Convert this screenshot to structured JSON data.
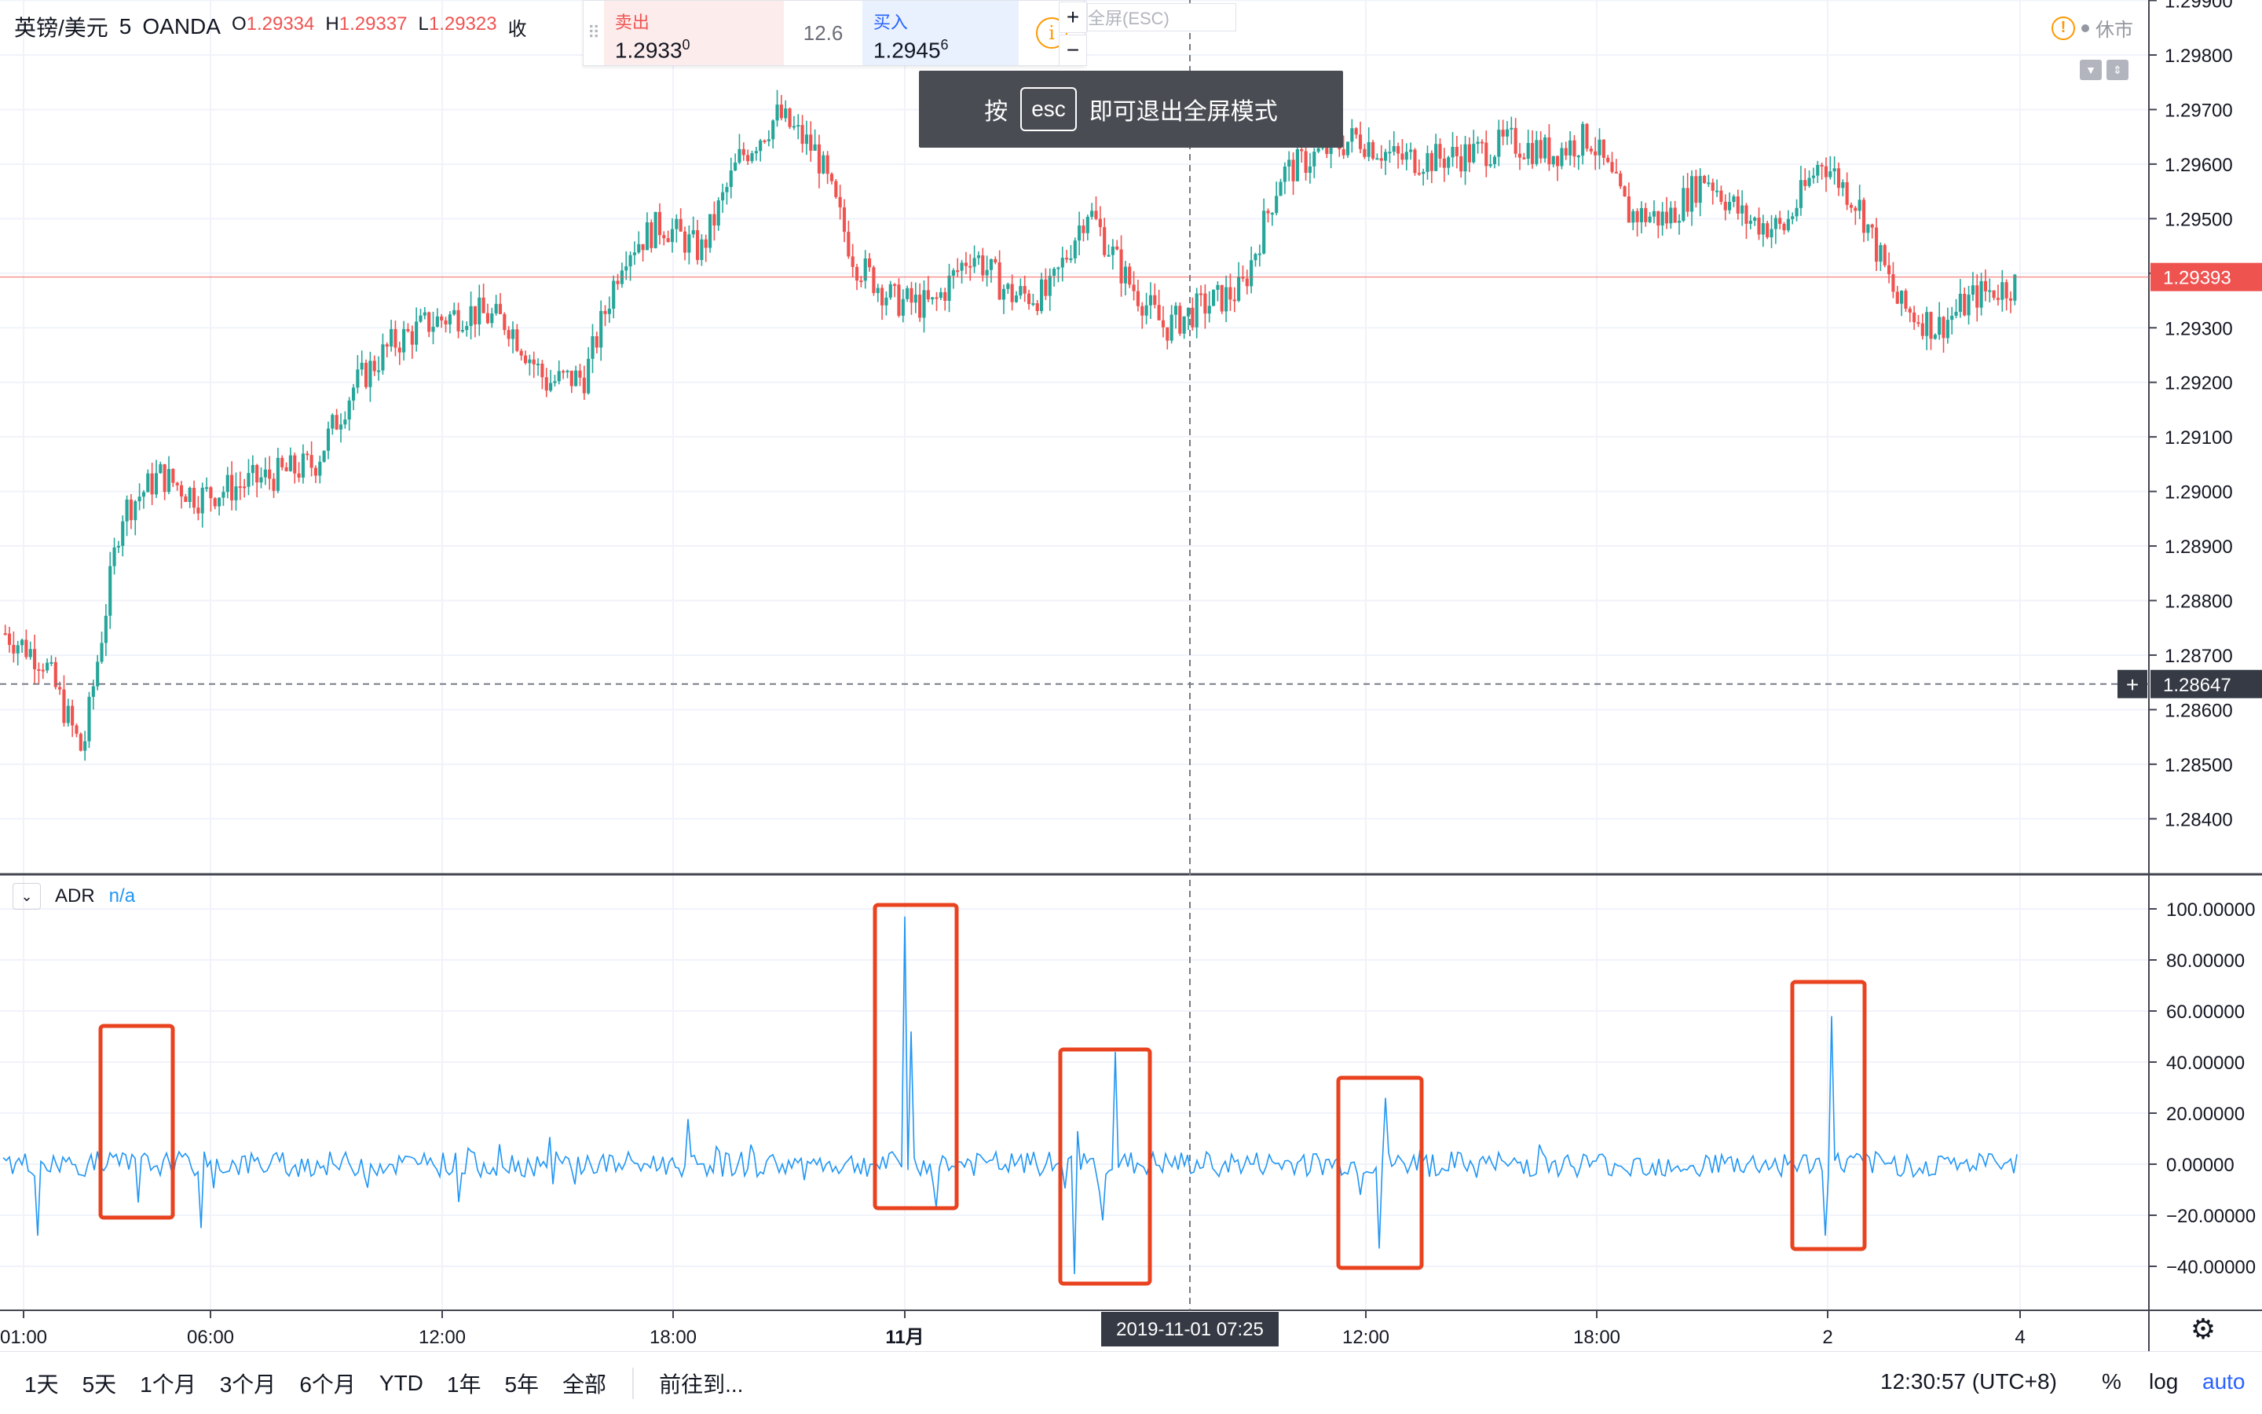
{
  "header": {
    "symbol": "英镑/美元",
    "interval": "5",
    "exchange": "OANDA",
    "ohlc": [
      {
        "key": "O",
        "value": "1.29334"
      },
      {
        "key": "H",
        "value": "1.29337"
      },
      {
        "key": "L",
        "value": "1.29323"
      },
      {
        "key": "收",
        "value": ""
      }
    ]
  },
  "trade": {
    "sell_label": "卖出",
    "sell_price": "1.2933",
    "sell_sup": "0",
    "spread": "12.6",
    "buy_label": "买入",
    "buy_price": "1.2945",
    "buy_sup": "6",
    "info_icon": "i",
    "plus": "+",
    "minus": "−",
    "fullscreen_hint": "全屏(ESC)"
  },
  "esc_toast": {
    "prefix": "按",
    "key": "esc",
    "suffix": "即可退出全屏模式"
  },
  "market_status": {
    "warn": "!",
    "label": "休市"
  },
  "price_pane": {
    "ticks": [
      "1.29900",
      "1.29800",
      "1.29700",
      "1.29600",
      "1.29500",
      "1.29400",
      "1.29300",
      "1.29200",
      "1.29100",
      "1.29000",
      "1.28900",
      "1.28800",
      "1.28700",
      "1.28600",
      "1.28500",
      "1.28400"
    ],
    "last_price": "1.29393",
    "crosshair_price": "1.28647"
  },
  "indicator": {
    "name": "ADR",
    "value": "n/a",
    "ticks": [
      "100.00000",
      "80.00000",
      "60.00000",
      "40.00000",
      "20.00000",
      "0.00000",
      "−20.00000",
      "−40.00000"
    ]
  },
  "time_axis": {
    "labels": [
      "01:00",
      "06:00",
      "12:00",
      "18:00",
      "11月",
      "12:00",
      "18:00",
      "2",
      "4"
    ],
    "crosshair_label": "2019-11-01   07:25"
  },
  "bottom_bar": {
    "ranges": [
      "1天",
      "5天",
      "1个月",
      "3个月",
      "6个月",
      "YTD",
      "1年",
      "5年",
      "全部"
    ],
    "goto": "前往到...",
    "clock": "12:30:57 (UTC+8)",
    "percent": "%",
    "log": "log",
    "auto": "auto"
  },
  "colors": {
    "up": "#26a69a",
    "down": "#ef5350",
    "indicator": "#2196f3",
    "highlight": "#e8421f",
    "accent": "#2962ff"
  },
  "chart_data": [
    {
      "type": "candlestick",
      "title": "",
      "y_axis_range": [
        1.2835,
        1.2995
      ],
      "x_axis_ticks": [
        "01:00",
        "06:00",
        "12:00",
        "18:00",
        "11月",
        "12:00",
        "18:00",
        "2",
        "4"
      ],
      "series": [
        {
          "name": "",
          "close_trend": [
            [
              "01:00",
              1.2874
            ],
            [
              "02:00",
              1.2869
            ],
            [
              "03:00",
              1.2852
            ],
            [
              "03:30",
              1.2896
            ],
            [
              "04:00",
              1.2903
            ],
            [
              "05:00",
              1.2899
            ],
            [
              "06:00",
              1.2901
            ],
            [
              "07:00",
              1.2903
            ],
            [
              "08:00",
              1.2905
            ],
            [
              "09:00",
              1.2919
            ],
            [
              "10:00",
              1.2927
            ],
            [
              "11:00",
              1.2931
            ],
            [
              "12:00",
              1.2933
            ],
            [
              "13:00",
              1.2931
            ],
            [
              "14:00",
              1.292
            ],
            [
              "15:00",
              1.2921
            ],
            [
              "16:00",
              1.2944
            ],
            [
              "17:00",
              1.2949
            ],
            [
              "18:00",
              1.2944
            ],
            [
              "19:00",
              1.2961
            ],
            [
              "20:00",
              1.2969
            ],
            [
              "21:00",
              1.2962
            ],
            [
              "22:00",
              1.2942
            ],
            [
              "23:00",
              1.2935
            ],
            [
              "11月",
              1.2934
            ],
            [
              "01:00",
              1.2944
            ],
            [
              "02:00",
              1.2936
            ],
            [
              "03:00",
              1.2936
            ],
            [
              "04:00",
              1.2952
            ],
            [
              "05:00",
              1.2939
            ],
            [
              "06:00",
              1.293
            ],
            [
              "07:00",
              1.2934
            ],
            [
              "08:00",
              1.2937
            ],
            [
              "09:00",
              1.2958
            ],
            [
              "10:00",
              1.2962
            ],
            [
              "11:00",
              1.2965
            ],
            [
              "12:00",
              1.2961
            ],
            [
              "13:00",
              1.2961
            ],
            [
              "14:00",
              1.2962
            ],
            [
              "15:00",
              1.2964
            ],
            [
              "16:00",
              1.2962
            ],
            [
              "17:00",
              1.2965
            ],
            [
              "18:00",
              1.2951
            ],
            [
              "19:00",
              1.295
            ],
            [
              "20:00",
              1.2958
            ],
            [
              "21:00",
              1.295
            ],
            [
              "22:00",
              1.2948
            ],
            [
              "23:00",
              1.2961
            ],
            [
              "2",
              1.2952
            ],
            [
              "01:00",
              1.2934
            ],
            [
              "02:00",
              1.293
            ],
            [
              "03:00",
              1.2936
            ],
            [
              "04:00",
              1.2938
            ]
          ],
          "last": 1.29393
        }
      ]
    },
    {
      "type": "line",
      "title": "",
      "ylabel": "",
      "ylim": [
        -45,
        105
      ],
      "series": [
        {
          "name": "ADR",
          "spikes": [
            {
              "time": "04:00",
              "value": 47
            },
            {
              "time": "04:00",
              "value": -15
            },
            {
              "time": "02:00",
              "value": -28
            },
            {
              "time": "05:00",
              "value": -25
            },
            {
              "time": "11月",
              "value": 97
            },
            {
              "time": "11月",
              "value": 52
            },
            {
              "time": "11月",
              "value": -17
            },
            {
              "time": "03:00",
              "value": 44
            },
            {
              "time": "02:00",
              "value": -43
            },
            {
              "time": "04:00",
              "value": -22
            },
            {
              "time": "11:00",
              "value": 26
            },
            {
              "time": "11:00",
              "value": -33
            },
            {
              "time": "10:00",
              "value": -12
            },
            {
              "time": "23:00",
              "value": 58
            },
            {
              "time": "23:00",
              "value": -28
            }
          ],
          "baseline": 0
        }
      ],
      "highlighted_regions": 5
    }
  ]
}
